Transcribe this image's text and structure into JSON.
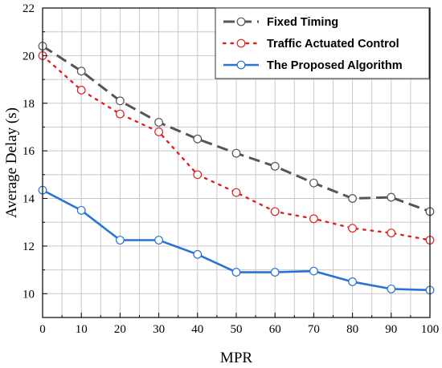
{
  "chart_data": {
    "type": "line",
    "xlabel": "MPR",
    "ylabel": "Average Delay (s)",
    "xlim": [
      0,
      100
    ],
    "ylim": [
      9,
      22
    ],
    "x_ticks": [
      "0",
      "10",
      "20",
      "30",
      "40",
      "50",
      "60",
      "70",
      "80",
      "90",
      "100"
    ],
    "y_ticks": [
      "10",
      "12",
      "14",
      "16",
      "18",
      "20",
      "22"
    ],
    "grid": true,
    "legend_position": "top-right",
    "x": [
      0,
      10,
      20,
      30,
      40,
      50,
      60,
      70,
      80,
      90,
      100
    ],
    "series": [
      {
        "name": "Fixed Timing",
        "style": "dashed",
        "color": "#555555",
        "marker_color": "#555555",
        "values": [
          20.4,
          19.35,
          18.1,
          17.2,
          16.5,
          15.9,
          15.35,
          14.65,
          14.0,
          14.05,
          13.45
        ]
      },
      {
        "name": "Traffic Actuated Control",
        "style": "dotted",
        "color": "#e02020",
        "marker_color": "#e02020",
        "values": [
          20.0,
          18.55,
          17.55,
          16.8,
          15.0,
          14.25,
          13.45,
          13.15,
          12.75,
          12.55,
          12.25
        ]
      },
      {
        "name": "The Proposed Algorithm",
        "style": "solid",
        "color": "#2a72d4",
        "marker_color": "#2a72d4",
        "values": [
          14.35,
          13.5,
          12.25,
          12.25,
          11.65,
          10.9,
          10.9,
          10.95,
          10.5,
          10.2,
          10.15
        ]
      }
    ]
  }
}
